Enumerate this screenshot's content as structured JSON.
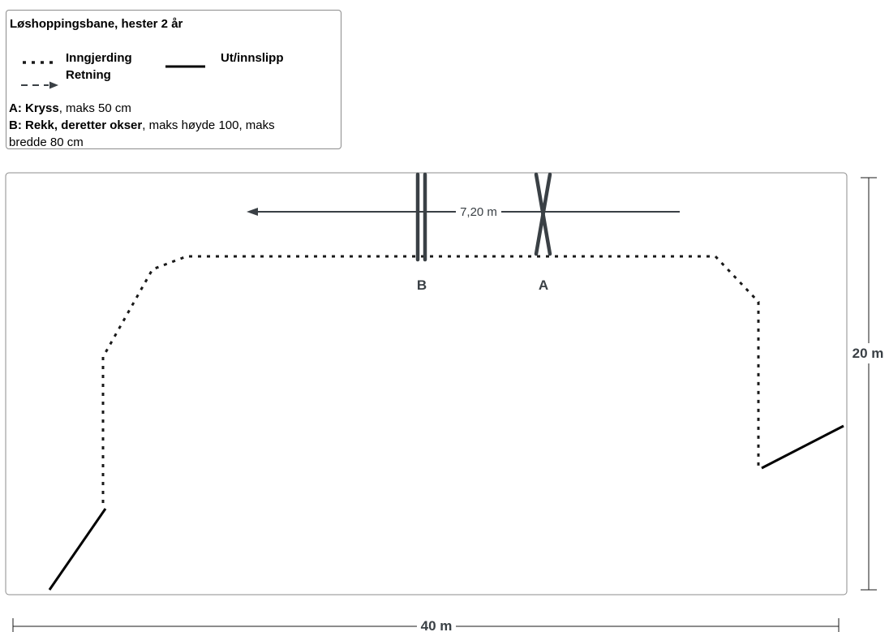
{
  "legend": {
    "title": "Løshoppingsbane, hester 2 år",
    "fencing_label": "Inngjerding",
    "exit_label": "Ut/innslipp",
    "direction_label": "Retning",
    "note_a_key": "A: Kryss",
    "note_a_rest": ", maks 50 cm",
    "note_b_key": "B: Rekk, deretter okser",
    "note_b_rest": ", maks høyde 100, maks",
    "note_b_line2": "bredde 80 cm"
  },
  "plan": {
    "distance_label": "7,20 m",
    "jump_b_label": "B",
    "jump_a_label": "A",
    "height_label": "20 m",
    "width_label": "40 m"
  },
  "colors": {
    "fence": "#1a1a1a",
    "jump": "#3a4045",
    "arrow": "#3a4045",
    "border": "#8c8c8c"
  }
}
